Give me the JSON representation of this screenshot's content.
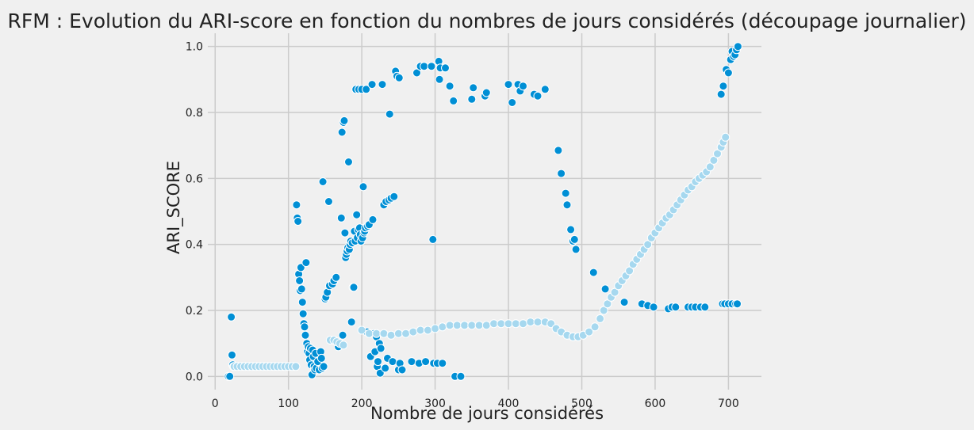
{
  "chart_data": {
    "type": "scatter",
    "title": "RFM : Evolution du ARI-score en fonction du nombres de jours considérés (découpage journalier)",
    "xlabel": "Nombre de jours considérés",
    "ylabel": "ARI_SCORE",
    "xlim": [
      -10,
      745
    ],
    "ylim": [
      -0.04,
      1.04
    ],
    "xticks": [
      0,
      100,
      200,
      300,
      400,
      500,
      600,
      700
    ],
    "xtick_labels": [
      "0",
      "100",
      "200",
      "300",
      "400",
      "500",
      "600",
      "700"
    ],
    "yticks": [
      0.0,
      0.2,
      0.4,
      0.6,
      0.8,
      1.0
    ],
    "ytick_labels": [
      "0.0",
      "0.2",
      "0.4",
      "0.6",
      "0.8",
      "1.0"
    ],
    "grid": true,
    "colors": {
      "dark_point": "#008fd5",
      "light_point": "#a6d8ef",
      "edge": "#ffffff",
      "grid": "#cbcbcb",
      "background": "#f0f0f0"
    },
    "series": [
      {
        "color": "#008fd5",
        "points": [
          [
            18,
            0.0
          ],
          [
            20,
            0.0
          ],
          [
            22,
            0.18
          ],
          [
            23,
            0.065
          ],
          [
            24,
            0.035
          ],
          [
            25,
            0.03
          ],
          [
            111,
            0.52
          ],
          [
            112,
            0.48
          ],
          [
            113,
            0.47
          ],
          [
            114,
            0.31
          ],
          [
            115,
            0.29
          ],
          [
            116,
            0.26
          ],
          [
            117,
            0.33
          ],
          [
            118,
            0.265
          ],
          [
            119,
            0.225
          ],
          [
            120,
            0.19
          ],
          [
            121,
            0.16
          ],
          [
            122,
            0.15
          ],
          [
            123,
            0.125
          ],
          [
            124,
            0.345
          ],
          [
            125,
            0.1
          ],
          [
            126,
            0.075
          ],
          [
            127,
            0.09
          ],
          [
            128,
            0.07
          ],
          [
            129,
            0.05
          ],
          [
            130,
            0.085
          ],
          [
            131,
            0.035
          ],
          [
            132,
            0.005
          ],
          [
            133,
            0.08
          ],
          [
            134,
            0.06
          ],
          [
            135,
            0.03
          ],
          [
            136,
            0.02
          ],
          [
            137,
            0.07
          ],
          [
            138,
            0.025
          ],
          [
            140,
            0.045
          ],
          [
            142,
            0.02
          ],
          [
            144,
            0.075
          ],
          [
            145,
            0.055
          ],
          [
            146,
            0.025
          ],
          [
            147,
            0.59
          ],
          [
            148,
            0.03
          ],
          [
            150,
            0.235
          ],
          [
            151,
            0.24
          ],
          [
            153,
            0.255
          ],
          [
            155,
            0.53
          ],
          [
            156,
            0.275
          ],
          [
            158,
            0.11
          ],
          [
            160,
            0.28
          ],
          [
            162,
            0.29
          ],
          [
            165,
            0.3
          ],
          [
            168,
            0.09
          ],
          [
            172,
            0.48
          ],
          [
            173,
            0.74
          ],
          [
            174,
            0.125
          ],
          [
            175,
            0.77
          ],
          [
            176,
            0.775
          ],
          [
            177,
            0.435
          ],
          [
            178,
            0.36
          ],
          [
            179,
            0.37
          ],
          [
            180,
            0.38
          ],
          [
            181,
            0.39
          ],
          [
            182,
            0.65
          ],
          [
            183,
            0.385
          ],
          [
            184,
            0.4
          ],
          [
            185,
            0.41
          ],
          [
            186,
            0.165
          ],
          [
            187,
            0.405
          ],
          [
            188,
            0.27
          ],
          [
            189,
            0.27
          ],
          [
            190,
            0.44
          ],
          [
            191,
            0.41
          ],
          [
            192,
            0.87
          ],
          [
            193,
            0.49
          ],
          [
            194,
            0.42
          ],
          [
            195,
            0.445
          ],
          [
            196,
            0.87
          ],
          [
            197,
            0.45
          ],
          [
            198,
            0.43
          ],
          [
            199,
            0.41
          ],
          [
            200,
            0.87
          ],
          [
            201,
            0.42
          ],
          [
            202,
            0.575
          ],
          [
            203,
            0.435
          ],
          [
            204,
            0.44
          ],
          [
            205,
            0.45
          ],
          [
            206,
            0.87
          ],
          [
            207,
            0.135
          ],
          [
            208,
            0.455
          ],
          [
            210,
            0.46
          ],
          [
            212,
            0.06
          ],
          [
            214,
            0.885
          ],
          [
            215,
            0.475
          ],
          [
            216,
            0.13
          ],
          [
            218,
            0.075
          ],
          [
            220,
            0.12
          ],
          [
            221,
            0.03
          ],
          [
            222,
            0.045
          ],
          [
            224,
            0.1
          ],
          [
            225,
            0.01
          ],
          [
            226,
            0.085
          ],
          [
            228,
            0.885
          ],
          [
            230,
            0.52
          ],
          [
            232,
            0.025
          ],
          [
            233,
            0.53
          ],
          [
            235,
            0.055
          ],
          [
            237,
            0.535
          ],
          [
            238,
            0.795
          ],
          [
            240,
            0.54
          ],
          [
            242,
            0.045
          ],
          [
            244,
            0.545
          ],
          [
            246,
            0.925
          ],
          [
            248,
            0.91
          ],
          [
            250,
            0.02
          ],
          [
            251,
            0.905
          ],
          [
            252,
            0.04
          ],
          [
            255,
            0.02
          ],
          [
            268,
            0.045
          ],
          [
            275,
            0.92
          ],
          [
            278,
            0.04
          ],
          [
            280,
            0.94
          ],
          [
            285,
            0.94
          ],
          [
            287,
            0.045
          ],
          [
            295,
            0.94
          ],
          [
            297,
            0.415
          ],
          [
            298,
            0.04
          ],
          [
            303,
            0.04
          ],
          [
            305,
            0.955
          ],
          [
            306,
            0.9
          ],
          [
            307,
            0.935
          ],
          [
            310,
            0.04
          ],
          [
            314,
            0.935
          ],
          [
            320,
            0.88
          ],
          [
            325,
            0.835
          ],
          [
            327,
            0.0
          ],
          [
            335,
            0.0
          ],
          [
            350,
            0.84
          ],
          [
            352,
            0.875
          ],
          [
            368,
            0.85
          ],
          [
            370,
            0.86
          ],
          [
            400,
            0.885
          ],
          [
            405,
            0.83
          ],
          [
            413,
            0.885
          ],
          [
            416,
            0.865
          ],
          [
            420,
            0.88
          ],
          [
            435,
            0.855
          ],
          [
            440,
            0.85
          ],
          [
            450,
            0.87
          ],
          [
            468,
            0.685
          ],
          [
            472,
            0.615
          ],
          [
            478,
            0.555
          ],
          [
            480,
            0.52
          ],
          [
            485,
            0.445
          ],
          [
            488,
            0.41
          ],
          [
            490,
            0.415
          ],
          [
            492,
            0.385
          ],
          [
            516,
            0.315
          ],
          [
            532,
            0.265
          ],
          [
            558,
            0.225
          ],
          [
            582,
            0.22
          ],
          [
            590,
            0.215
          ],
          [
            598,
            0.21
          ],
          [
            618,
            0.205
          ],
          [
            623,
            0.21
          ],
          [
            628,
            0.21
          ],
          [
            645,
            0.21
          ],
          [
            650,
            0.21
          ],
          [
            655,
            0.21
          ],
          [
            662,
            0.21
          ],
          [
            668,
            0.21
          ],
          [
            690,
            0.855
          ],
          [
            693,
            0.88
          ],
          [
            697,
            0.93
          ],
          [
            700,
            0.92
          ],
          [
            703,
            0.96
          ],
          [
            705,
            0.985
          ],
          [
            707,
            0.97
          ],
          [
            709,
            0.975
          ],
          [
            711,
            0.99
          ],
          [
            713,
            1.0
          ],
          [
            692,
            0.22
          ],
          [
            695,
            0.22
          ],
          [
            700,
            0.22
          ],
          [
            705,
            0.22
          ],
          [
            710,
            0.22
          ],
          [
            712,
            0.22
          ]
        ]
      },
      {
        "color": "#a6d8ef",
        "points": [
          [
            26,
            0.03
          ],
          [
            30,
            0.03
          ],
          [
            35,
            0.03
          ],
          [
            40,
            0.03
          ],
          [
            45,
            0.03
          ],
          [
            50,
            0.03
          ],
          [
            55,
            0.03
          ],
          [
            60,
            0.03
          ],
          [
            65,
            0.03
          ],
          [
            70,
            0.03
          ],
          [
            75,
            0.03
          ],
          [
            80,
            0.03
          ],
          [
            85,
            0.03
          ],
          [
            90,
            0.03
          ],
          [
            95,
            0.03
          ],
          [
            100,
            0.03
          ],
          [
            105,
            0.03
          ],
          [
            110,
            0.03
          ],
          [
            157,
            0.11
          ],
          [
            162,
            0.11
          ],
          [
            166,
            0.105
          ],
          [
            170,
            0.1
          ],
          [
            175,
            0.095
          ],
          [
            200,
            0.14
          ],
          [
            210,
            0.13
          ],
          [
            220,
            0.13
          ],
          [
            230,
            0.13
          ],
          [
            240,
            0.125
          ],
          [
            250,
            0.13
          ],
          [
            260,
            0.13
          ],
          [
            270,
            0.135
          ],
          [
            280,
            0.14
          ],
          [
            290,
            0.14
          ],
          [
            300,
            0.145
          ],
          [
            310,
            0.15
          ],
          [
            320,
            0.155
          ],
          [
            330,
            0.155
          ],
          [
            340,
            0.155
          ],
          [
            350,
            0.155
          ],
          [
            360,
            0.155
          ],
          [
            370,
            0.155
          ],
          [
            380,
            0.16
          ],
          [
            390,
            0.16
          ],
          [
            400,
            0.16
          ],
          [
            410,
            0.16
          ],
          [
            420,
            0.16
          ],
          [
            430,
            0.165
          ],
          [
            440,
            0.165
          ],
          [
            450,
            0.165
          ],
          [
            458,
            0.16
          ],
          [
            465,
            0.145
          ],
          [
            472,
            0.135
          ],
          [
            480,
            0.125
          ],
          [
            488,
            0.12
          ],
          [
            495,
            0.12
          ],
          [
            502,
            0.125
          ],
          [
            510,
            0.135
          ],
          [
            518,
            0.15
          ],
          [
            525,
            0.175
          ],
          [
            530,
            0.2
          ],
          [
            535,
            0.22
          ],
          [
            540,
            0.24
          ],
          [
            545,
            0.255
          ],
          [
            550,
            0.275
          ],
          [
            555,
            0.29
          ],
          [
            560,
            0.305
          ],
          [
            565,
            0.32
          ],
          [
            570,
            0.34
          ],
          [
            575,
            0.355
          ],
          [
            580,
            0.37
          ],
          [
            585,
            0.385
          ],
          [
            590,
            0.4
          ],
          [
            595,
            0.42
          ],
          [
            600,
            0.435
          ],
          [
            605,
            0.45
          ],
          [
            610,
            0.465
          ],
          [
            615,
            0.48
          ],
          [
            620,
            0.49
          ],
          [
            625,
            0.505
          ],
          [
            630,
            0.52
          ],
          [
            635,
            0.535
          ],
          [
            640,
            0.55
          ],
          [
            645,
            0.565
          ],
          [
            650,
            0.575
          ],
          [
            655,
            0.59
          ],
          [
            660,
            0.6
          ],
          [
            665,
            0.61
          ],
          [
            670,
            0.62
          ],
          [
            675,
            0.635
          ],
          [
            680,
            0.655
          ],
          [
            685,
            0.675
          ],
          [
            690,
            0.695
          ],
          [
            693,
            0.71
          ],
          [
            696,
            0.725
          ]
        ]
      }
    ]
  }
}
